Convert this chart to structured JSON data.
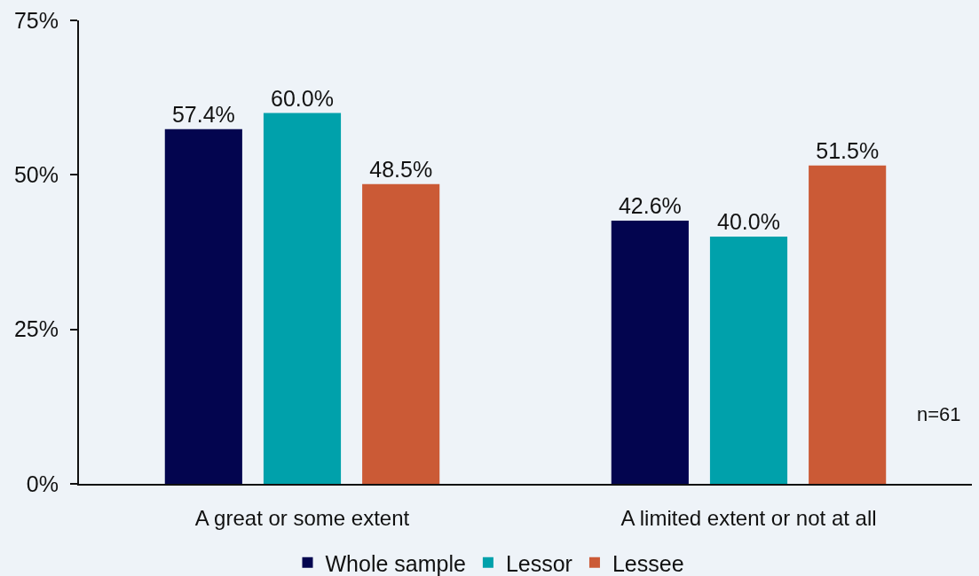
{
  "chart_data": {
    "type": "bar",
    "categories": [
      "A great or some extent",
      "A limited extent or not at all"
    ],
    "series": [
      {
        "name": "Whole sample",
        "color": "#03054f",
        "values": [
          57.4,
          42.6
        ],
        "value_labels": [
          "57.4%",
          "42.6%"
        ]
      },
      {
        "name": "Lessor",
        "color": "#00a1ab",
        "values": [
          60.0,
          40.0
        ],
        "value_labels": [
          "60.0%",
          "40.0%"
        ]
      },
      {
        "name": "Lessee",
        "color": "#cb5a36",
        "values": [
          48.5,
          51.5
        ],
        "value_labels": [
          "48.5%",
          "51.5%"
        ]
      }
    ],
    "ylim": [
      0,
      75
    ],
    "yticks": [
      {
        "value": 0,
        "label": "0%"
      },
      {
        "value": 25,
        "label": "25%"
      },
      {
        "value": 50,
        "label": "50%"
      },
      {
        "value": 75,
        "label": "75%"
      }
    ],
    "annotations": [
      "n=61"
    ],
    "legend": "bottom",
    "grid": false
  }
}
